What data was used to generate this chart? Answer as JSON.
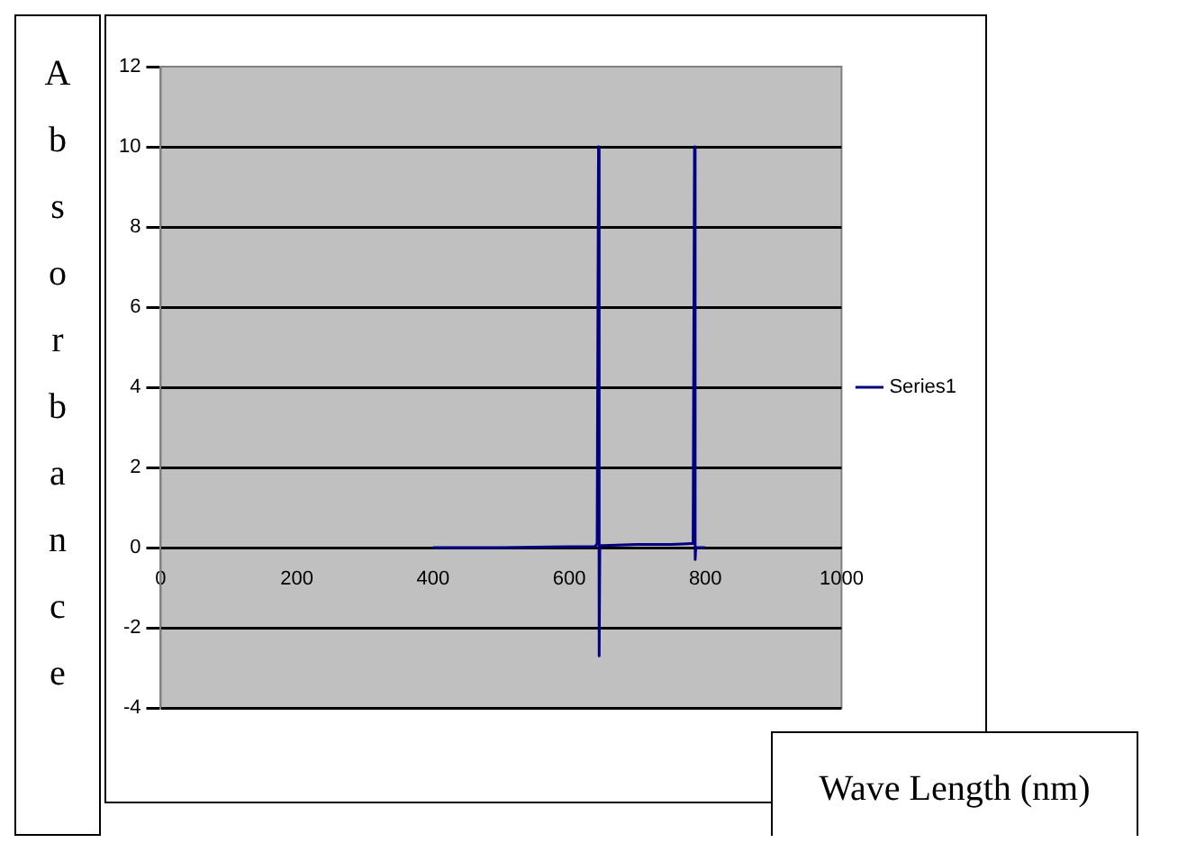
{
  "chart_data": {
    "type": "line",
    "xlabel": "Wave Length (nm)",
    "ylabel": "Absorbance",
    "xlim": [
      0,
      1000
    ],
    "xticks": [
      0,
      200,
      400,
      600,
      800,
      1000
    ],
    "ylim": [
      -4,
      12
    ],
    "yticks": [
      -4,
      -2,
      0,
      2,
      4,
      6,
      8,
      10,
      12
    ],
    "grid": "y",
    "legend": "right",
    "marker": "none",
    "line_style": "solid",
    "series": [
      {
        "name": "Series1",
        "color": "#000080",
        "x": [
          400,
          500,
          600,
          638,
          641,
          643,
          644,
          645,
          650,
          700,
          750,
          780,
          782,
          784,
          785,
          786,
          790,
          800
        ],
        "values": [
          0,
          0,
          0.02,
          0.03,
          0.1,
          10,
          -2.7,
          0.05,
          0.05,
          0.08,
          0.08,
          0.1,
          0.3,
          10,
          -0.3,
          0,
          0,
          0
        ]
      }
    ]
  }
}
